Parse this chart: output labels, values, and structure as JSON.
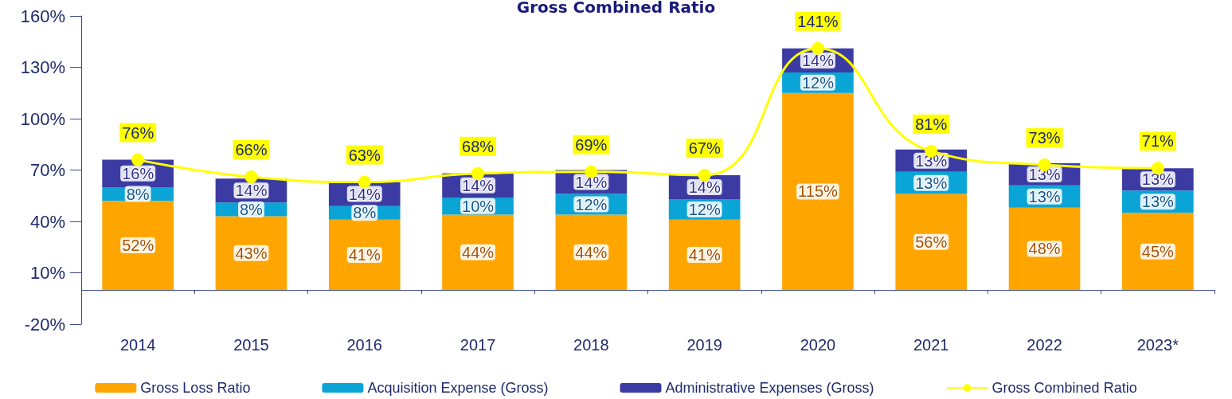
{
  "chart_data": {
    "type": "bar",
    "title": "Gross Combined Ratio",
    "stacked": true,
    "categories": [
      "2014",
      "2015",
      "2016",
      "2017",
      "2018",
      "2019",
      "2020",
      "2021",
      "2022",
      "2023*"
    ],
    "series": [
      {
        "name": "Gross Loss Ratio",
        "color": "#ffa500",
        "values": [
          52,
          43,
          41,
          44,
          44,
          41,
          115,
          56,
          48,
          45
        ],
        "value_labels": [
          "52%",
          "43%",
          "41%",
          "44%",
          "44%",
          "41%",
          "115%",
          "56%",
          "48%",
          "45%"
        ]
      },
      {
        "name": "Acquisition Expense (Gross)",
        "color": "#0aa5d6",
        "values": [
          8,
          8,
          8,
          10,
          12,
          12,
          12,
          13,
          13,
          13
        ],
        "value_labels": [
          "8%",
          "8%",
          "8%",
          "10%",
          "12%",
          "12%",
          "12%",
          "13%",
          "13%",
          "13%"
        ]
      },
      {
        "name": "Administrative Expenses (Gross)",
        "color": "#3b3ba3",
        "values": [
          16,
          14,
          14,
          14,
          14,
          14,
          14,
          13,
          13,
          13
        ],
        "value_labels": [
          "16%",
          "14%",
          "14%",
          "14%",
          "14%",
          "14%",
          "14%",
          "13%",
          "13%",
          "13%"
        ]
      },
      {
        "name": "Gross Combined Ratio",
        "type": "line",
        "color": "#ffff00",
        "marker": "circle",
        "values": [
          76,
          66,
          63,
          68,
          69,
          67,
          141,
          81,
          73,
          71
        ],
        "value_labels": [
          "76%",
          "66%",
          "63%",
          "68%",
          "69%",
          "67%",
          "141%",
          "81%",
          "73%",
          "71%"
        ]
      }
    ],
    "ylim": [
      -20,
      160
    ],
    "yticks": [
      {
        "value": -20,
        "label": "-20%"
      },
      {
        "value": 10,
        "label": "10%"
      },
      {
        "value": 40,
        "label": "40%"
      },
      {
        "value": 70,
        "label": "70%"
      },
      {
        "value": 100,
        "label": "100%"
      },
      {
        "value": 130,
        "label": "130%"
      },
      {
        "value": 160,
        "label": "160%"
      }
    ],
    "ref_lines": [
      {
        "axis": "y",
        "value": 0,
        "color": "#3b4a8a"
      }
    ],
    "grid": false,
    "legend": "bottom"
  }
}
